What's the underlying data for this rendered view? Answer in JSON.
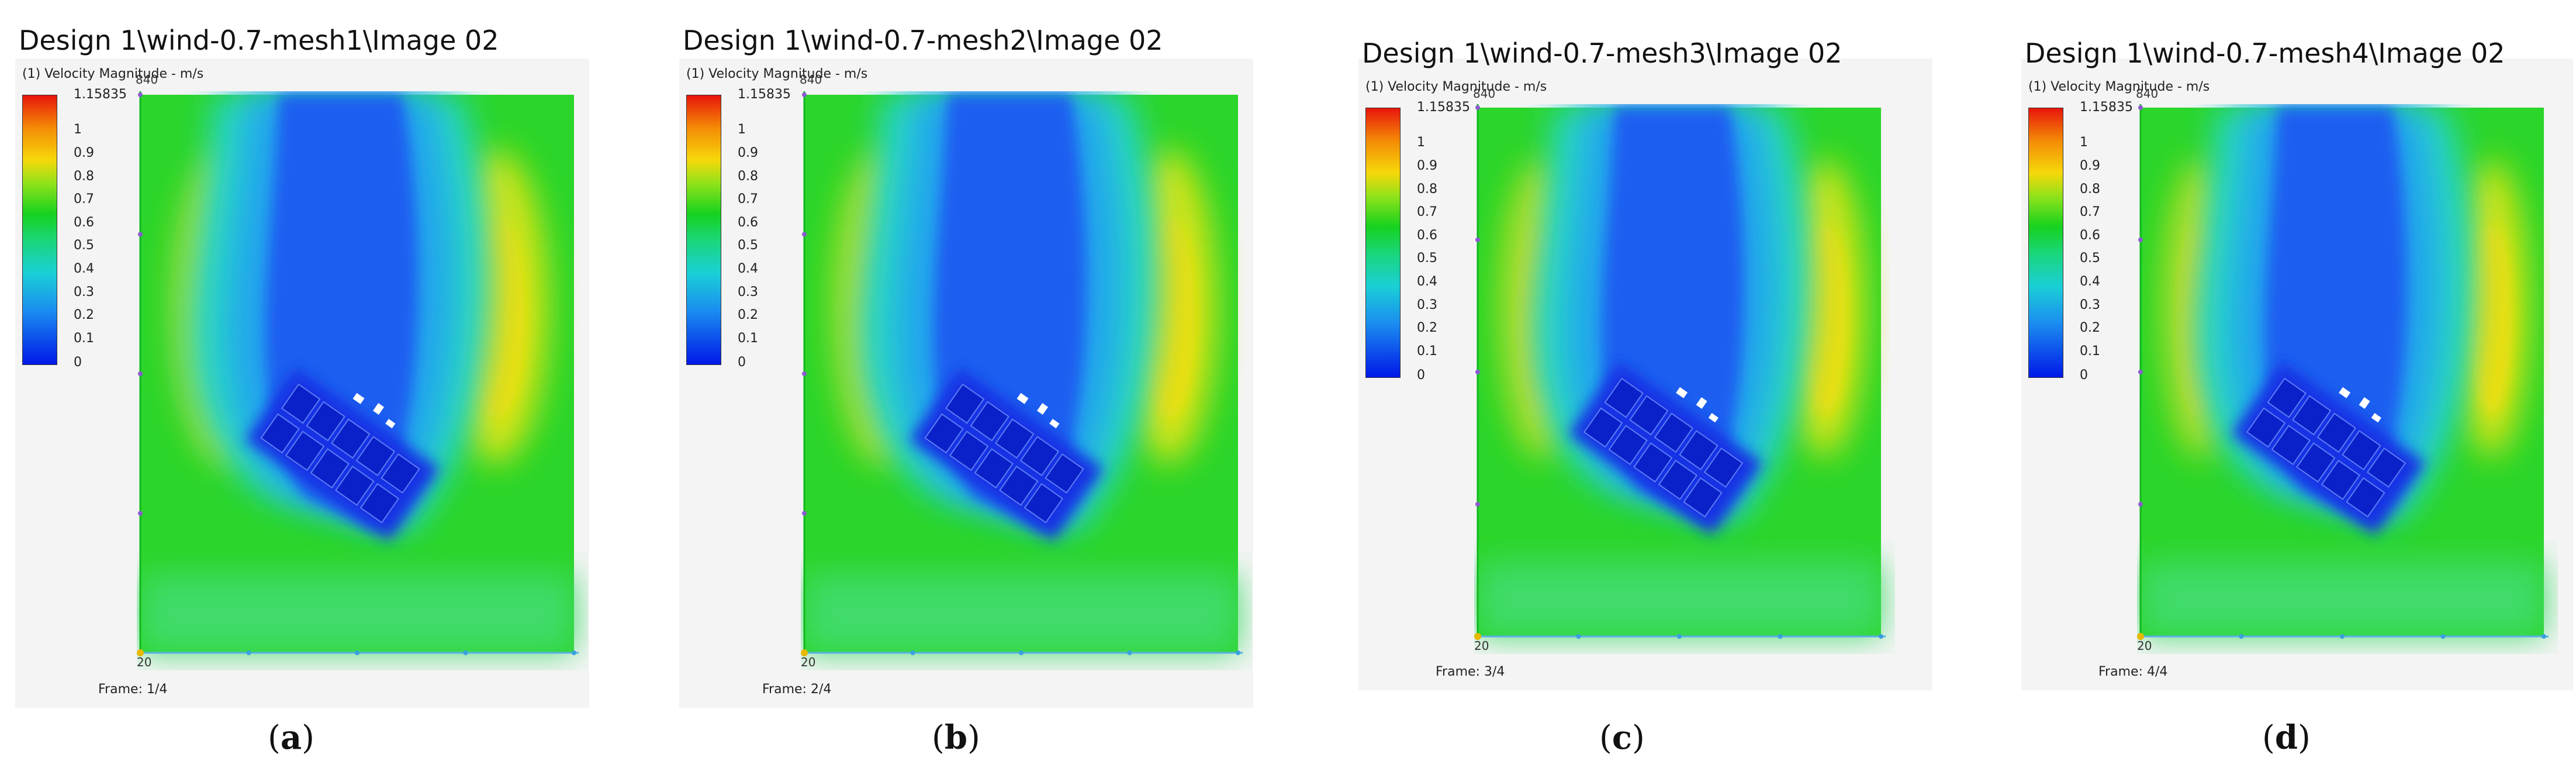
{
  "panels": [
    {
      "title": "Design 1\\wind-0.7-mesh1\\Image 02",
      "variable": "(1) Velocity Magnitude - m/s",
      "frame": "Frame: 1/4",
      "letter": "a"
    },
    {
      "title": "Design 1\\wind-0.7-mesh2\\Image 02",
      "variable": "(1) Velocity Magnitude - m/s",
      "frame": "Frame: 2/4",
      "letter": "b"
    },
    {
      "title": "Design 1\\wind-0.7-mesh3\\Image 02",
      "variable": "(1) Velocity Magnitude - m/s",
      "frame": "Frame: 3/4",
      "letter": "c"
    },
    {
      "title": "Design 1\\wind-0.7-mesh4\\Image 02",
      "variable": "(1) Velocity Magnitude - m/s",
      "frame": "Frame: 4/4",
      "letter": "d"
    }
  ],
  "legend": {
    "max_label": "1.15835",
    "ticks": [
      "1",
      "0.9",
      "0.8",
      "0.7",
      "0.6",
      "0.5",
      "0.4",
      "0.3",
      "0.2",
      "0.1",
      "0"
    ],
    "tick_values": [
      1,
      0.9,
      0.8,
      0.7,
      0.6,
      0.5,
      0.4,
      0.3,
      0.2,
      0.1,
      0
    ],
    "max_value": 1.15835
  },
  "axes": {
    "top_label": "840",
    "origin_label": "20"
  },
  "colors": {
    "high": "#e8150c",
    "mid": "#16d21e",
    "low": "#0018e8",
    "axis_y": "#10b81c"
  }
}
